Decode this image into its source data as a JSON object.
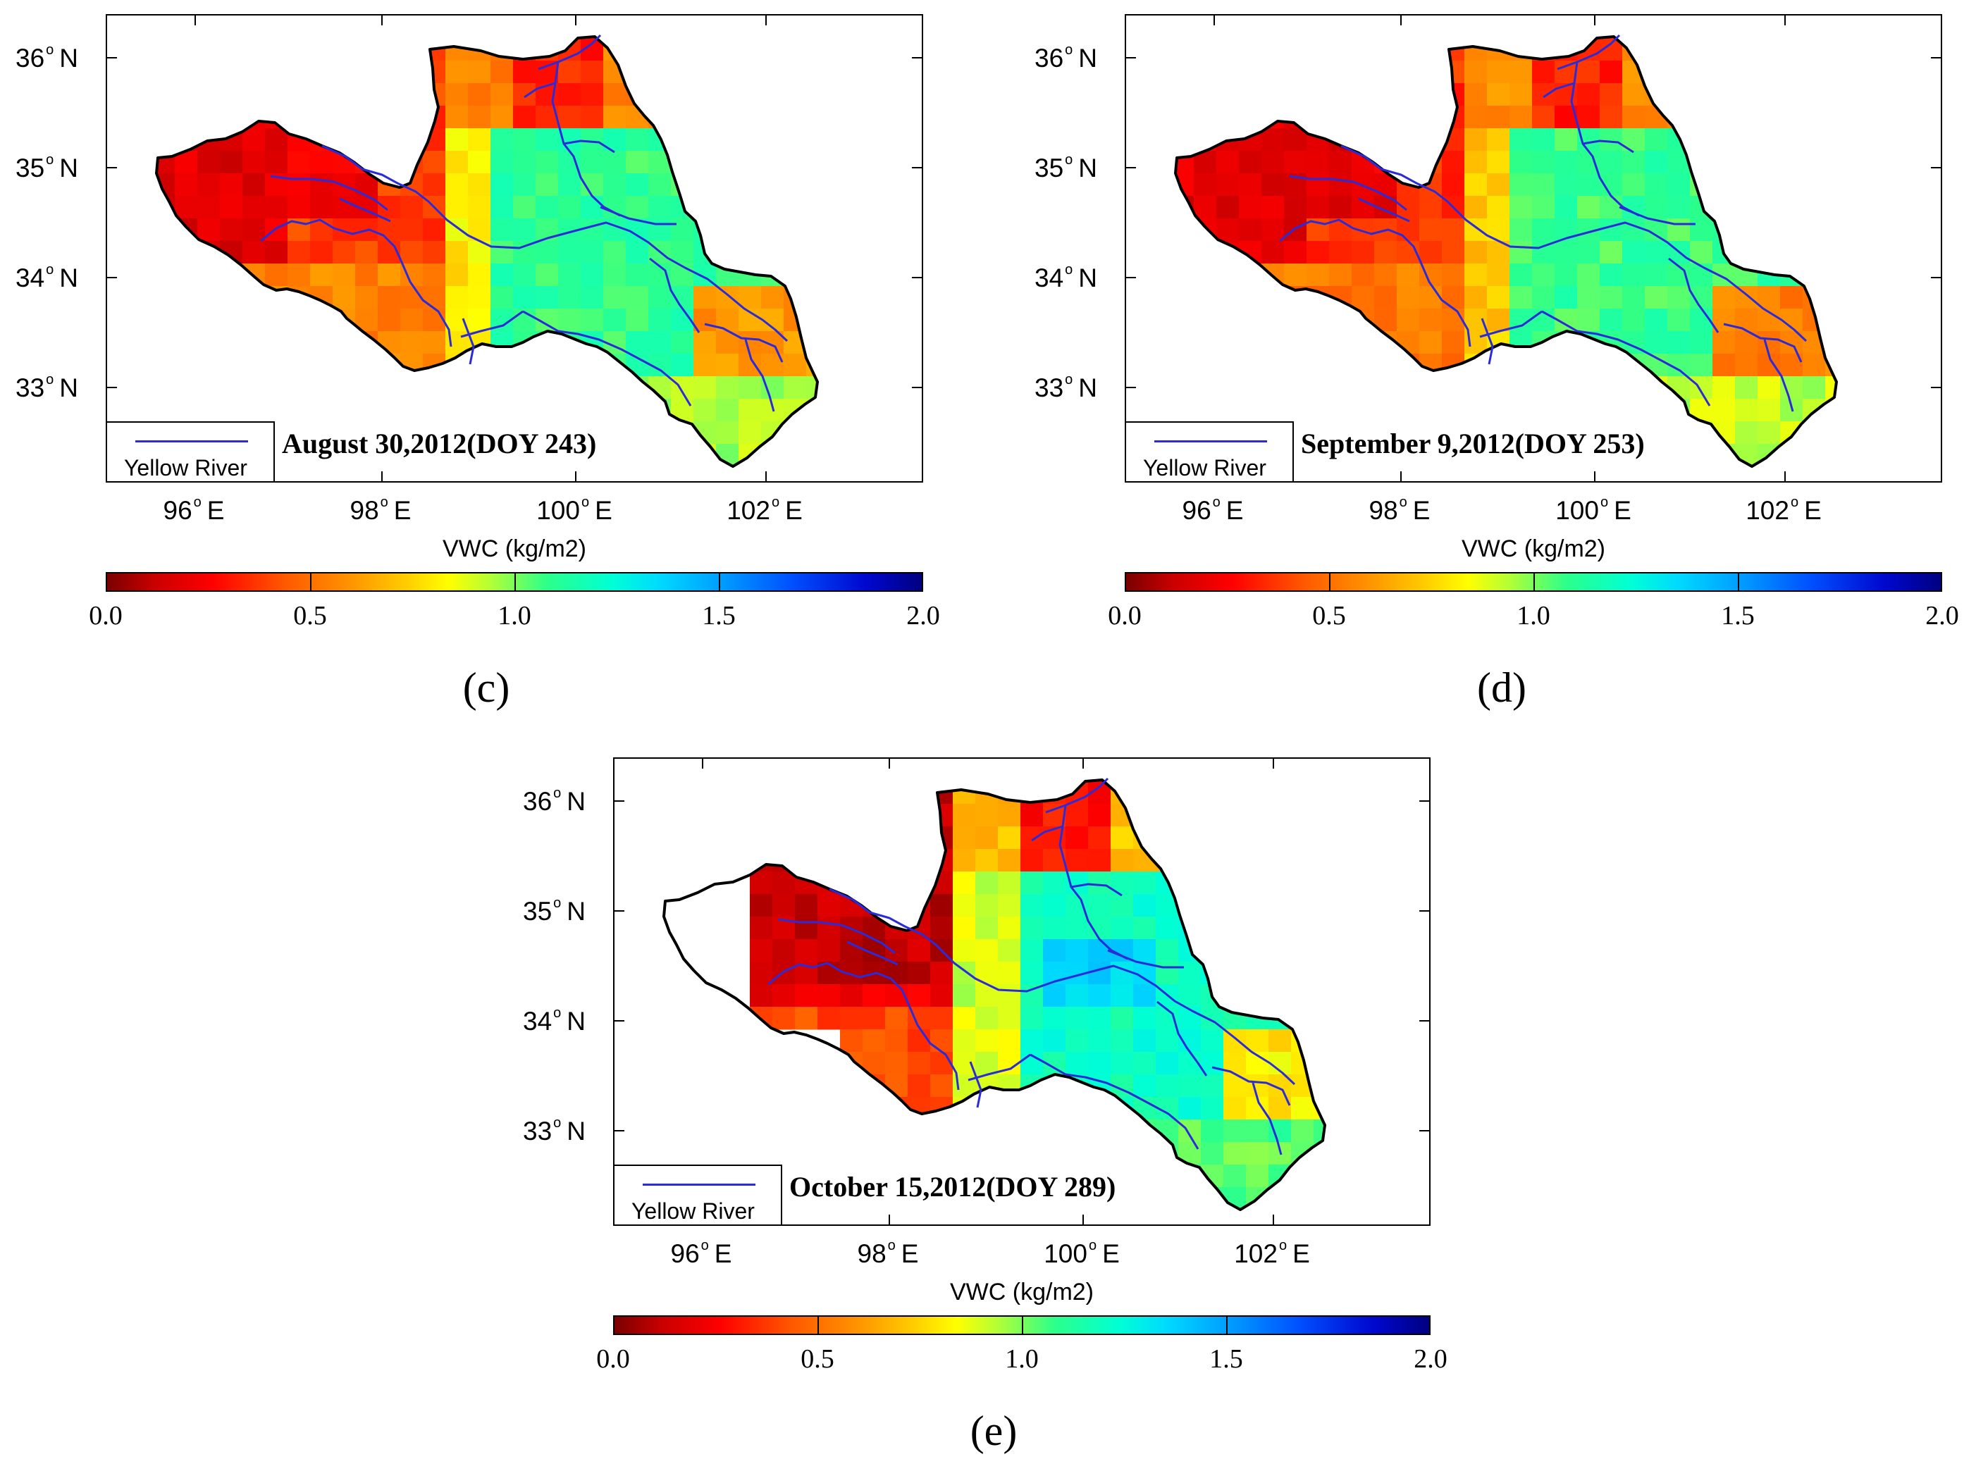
{
  "figure": {
    "colorbar": {
      "title": "VWC (kg/m2)",
      "ticks": [
        "0.0",
        "0.5",
        "1.0",
        "1.5",
        "2.0"
      ]
    },
    "lat_labels": [
      "36",
      "35",
      "34",
      "33"
    ],
    "lat_suffix": "N",
    "lon_labels": [
      "96",
      "98",
      "100",
      "102"
    ],
    "lon_suffix": "E",
    "legend_label": "Yellow River",
    "river_color": "#2b2bd9"
  },
  "panels": [
    {
      "label": "(c)",
      "date": "August 30,2012(DOY 243)"
    },
    {
      "label": "(d)",
      "date": "September 9,2012(DOY 253)"
    },
    {
      "label": "(e)",
      "date": "October 15,2012(DOY 289)"
    }
  ]
}
